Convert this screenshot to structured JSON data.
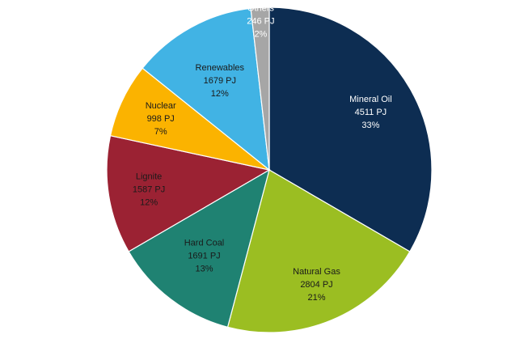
{
  "chart_data": {
    "type": "pie",
    "unit": "PJ",
    "slices": [
      {
        "label": "Mineral Oil",
        "value": 4511,
        "value_text": "4511",
        "unit": "PJ",
        "percent_text": "33%",
        "color": "#0d2d52",
        "label_color": "#ffffff"
      },
      {
        "label": "Natural Gas",
        "value": 2804,
        "value_text": "2804",
        "unit": "PJ",
        "percent_text": "21%",
        "color": "#9bbe22",
        "label_color": "#1a1a1a"
      },
      {
        "label": "Hard Coal",
        "value": 1691,
        "value_text": "1691",
        "unit": "PJ",
        "percent_text": "13%",
        "color": "#1f8272",
        "label_color": "#1a1a1a"
      },
      {
        "label": "Lignite",
        "value": 1587,
        "value_text": "1587",
        "unit": "PJ",
        "percent_text": "12%",
        "color": "#9b2233",
        "label_color": "#1a1a1a"
      },
      {
        "label": "Nuclear",
        "value": 998,
        "value_text": "998",
        "unit": "PJ",
        "percent_text": "7%",
        "color": "#fbb300",
        "label_color": "#1a1a1a"
      },
      {
        "label": "Renewables",
        "value": 1679,
        "value_text": "1679",
        "unit": "PJ",
        "percent_text": "12%",
        "color": "#41b3e4",
        "label_color": "#1a1a1a"
      },
      {
        "label": "Others",
        "value": 246,
        "value_text": "246",
        "unit": "PJ",
        "percent_text": "2%",
        "color": "#a6a6a6",
        "label_color": "#ffffff"
      }
    ],
    "start": "top",
    "direction": "clockwise",
    "legend": "none"
  }
}
